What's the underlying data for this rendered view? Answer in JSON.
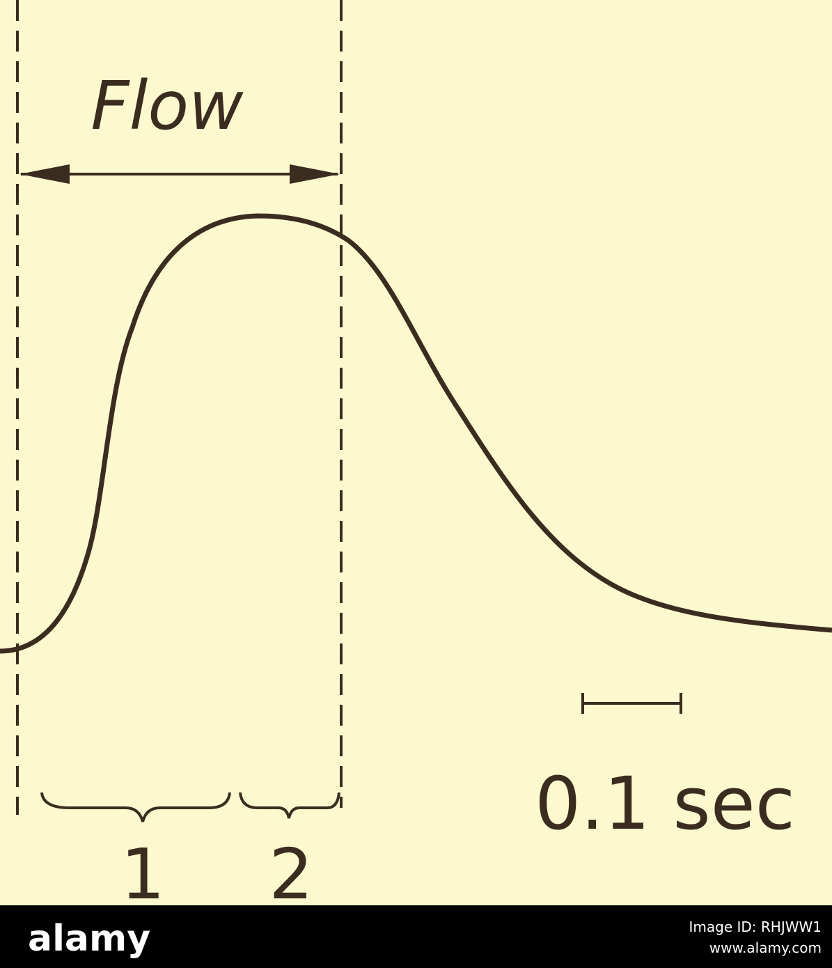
{
  "labels": {
    "flow": "Flow",
    "phase_1": "1",
    "phase_2": "2",
    "scale": "0.1 sec"
  },
  "footer": {
    "brand": "alamy",
    "image_id": "Image ID: RHJWW1",
    "url": "www.alamy.com"
  }
}
